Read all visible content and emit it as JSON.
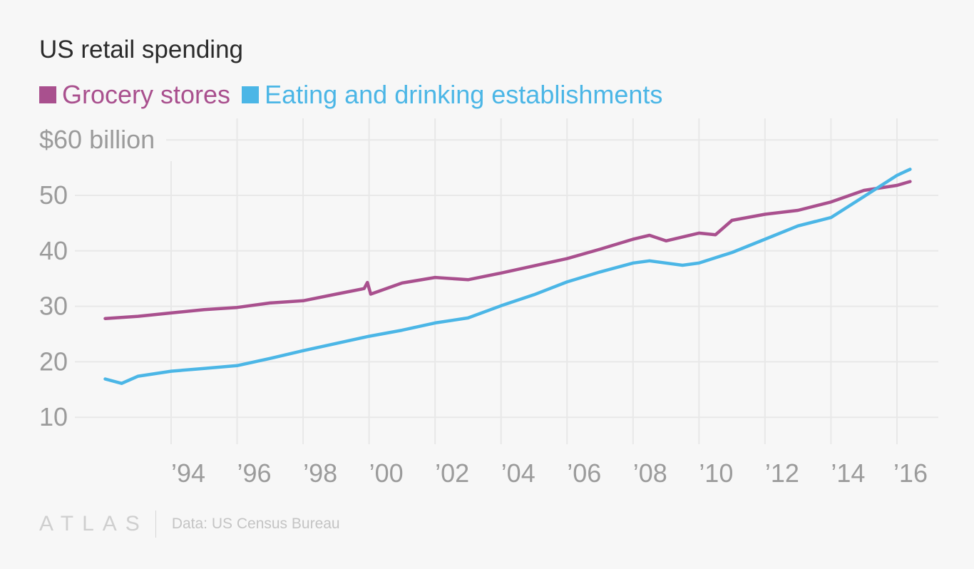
{
  "chart_data": {
    "type": "line",
    "title": "US retail spending",
    "ylabel_top": "$60 billion",
    "ylim": [
      10,
      60
    ],
    "yticks": [
      {
        "v": 60,
        "label": "$60 billion"
      },
      {
        "v": 50,
        "label": "50"
      },
      {
        "v": 40,
        "label": "40"
      },
      {
        "v": 30,
        "label": "30"
      },
      {
        "v": 20,
        "label": "20"
      },
      {
        "v": 10,
        "label": "10"
      }
    ],
    "xticks": [
      {
        "v": 1994,
        "label": "’94"
      },
      {
        "v": 1996,
        "label": "’96"
      },
      {
        "v": 1998,
        "label": "’98"
      },
      {
        "v": 2000,
        "label": "’00"
      },
      {
        "v": 2002,
        "label": "’02"
      },
      {
        "v": 2004,
        "label": "’04"
      },
      {
        "v": 2006,
        "label": "’06"
      },
      {
        "v": 2008,
        "label": "’08"
      },
      {
        "v": 2010,
        "label": "’10"
      },
      {
        "v": 2012,
        "label": "’12"
      },
      {
        "v": 2014,
        "label": "’14"
      },
      {
        "v": 2016,
        "label": "’16"
      }
    ],
    "grid": true,
    "legend_position": "top-left",
    "series": [
      {
        "name": "Grocery stores",
        "color": "#a9508e",
        "x": [
          1992,
          1993,
          1994,
          1995,
          1996,
          1997,
          1998,
          1999,
          1999.85,
          1999.95,
          2000.05,
          2001,
          2002,
          2003,
          2004,
          2005,
          2006,
          2007,
          2008,
          2008.5,
          2009,
          2010,
          2010.5,
          2011,
          2012,
          2013,
          2014,
          2015,
          2016,
          2016.4
        ],
        "y": [
          27.8,
          28.2,
          28.8,
          29.4,
          29.8,
          30.6,
          31.0,
          32.2,
          33.2,
          34.3,
          32.2,
          34.2,
          35.2,
          34.8,
          36.0,
          37.3,
          38.6,
          40.3,
          42.1,
          42.8,
          41.8,
          43.2,
          42.9,
          45.5,
          46.6,
          47.3,
          48.8,
          50.9,
          51.8,
          52.5
        ]
      },
      {
        "name": "Eating and drinking establishments",
        "color": "#4bb6e6",
        "x": [
          1992,
          1992.5,
          1993,
          1994,
          1995,
          1996,
          1997,
          1998,
          1999,
          2000,
          2001,
          2002,
          2003,
          2004,
          2005,
          2006,
          2007,
          2008,
          2008.5,
          2009.5,
          2010,
          2011,
          2012,
          2013,
          2014,
          2015,
          2016,
          2016.4
        ],
        "y": [
          16.9,
          16.1,
          17.4,
          18.3,
          18.8,
          19.3,
          20.6,
          22.0,
          23.3,
          24.6,
          25.7,
          27.0,
          27.9,
          30.1,
          32.1,
          34.4,
          36.2,
          37.8,
          38.2,
          37.4,
          37.8,
          39.7,
          42.1,
          44.5,
          46.0,
          49.8,
          53.6,
          54.7
        ]
      }
    ]
  },
  "footer": {
    "logo": "ATLAS",
    "source": "Data: US Census Bureau"
  }
}
